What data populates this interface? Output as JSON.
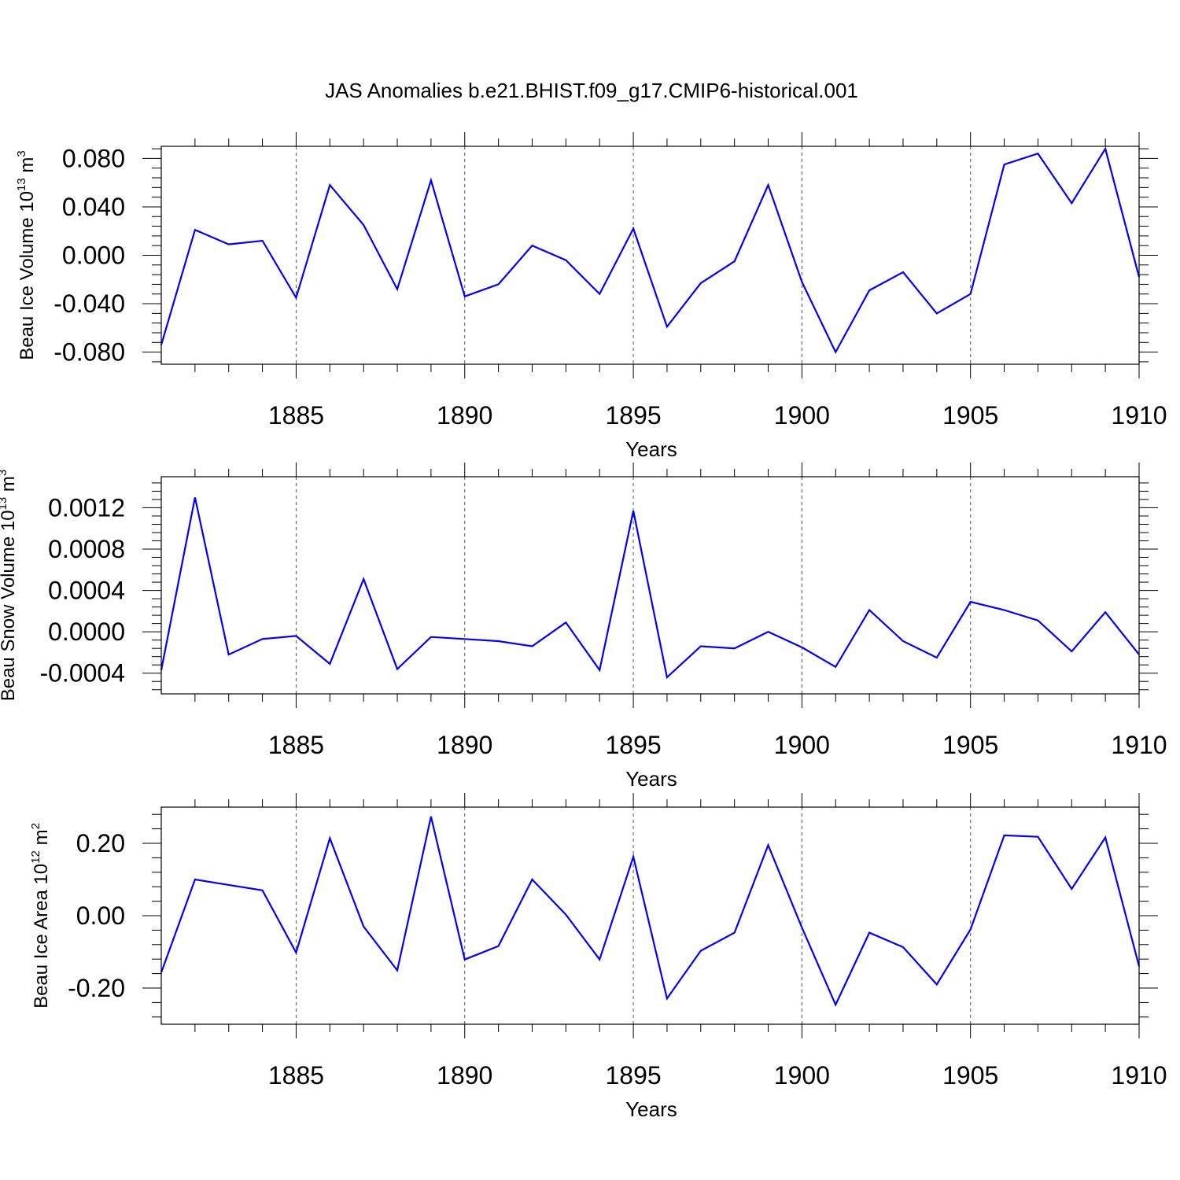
{
  "chart_data": [
    {
      "type": "line",
      "title": "JAS Anomalies b.e21.BHIST.f09_g17.CMIP6-historical.001",
      "xlabel": "Years",
      "ylabel": "Beau Ice Volume 10",
      "ylabel_exp": "13",
      "ylabel_unit": " m",
      "ylabel_unit_exp": "3",
      "xlim": [
        1881,
        1910
      ],
      "ylim": [
        -0.09,
        0.09
      ],
      "xticks": [
        "1885",
        "1890",
        "1895",
        "1900",
        "1905",
        "1910"
      ],
      "yticks": [
        {
          "value": 0.08,
          "label": "0.080"
        },
        {
          "value": 0.04,
          "label": "0.040"
        },
        {
          "value": 0.0,
          "label": "0.000"
        },
        {
          "value": -0.04,
          "label": "-0.040"
        },
        {
          "value": -0.08,
          "label": "-0.080"
        }
      ],
      "grid": "vertical dashed at 1885, 1890, 1895, 1900, 1905",
      "line_color": "#0000ff",
      "x": [
        1881,
        1882,
        1883,
        1884,
        1885,
        1886,
        1887,
        1888,
        1889,
        1890,
        1891,
        1892,
        1893,
        1894,
        1895,
        1896,
        1897,
        1898,
        1899,
        1900,
        1901,
        1902,
        1903,
        1904,
        1905,
        1906,
        1907,
        1908,
        1909,
        1910
      ],
      "values": [
        -0.074,
        0.021,
        0.009,
        0.012,
        -0.035,
        0.058,
        0.025,
        -0.028,
        0.062,
        -0.034,
        -0.024,
        0.008,
        -0.004,
        -0.032,
        0.022,
        -0.059,
        -0.023,
        -0.005,
        0.058,
        -0.022,
        -0.08,
        -0.029,
        -0.014,
        -0.048,
        -0.032,
        0.075,
        0.084,
        0.043,
        0.088,
        -0.018
      ]
    },
    {
      "type": "line",
      "title": "",
      "xlabel": "Years",
      "ylabel": "Beau Snow Volume 10",
      "ylabel_exp": "13",
      "ylabel_unit": " m",
      "ylabel_unit_exp": "3",
      "xlim": [
        1881,
        1910
      ],
      "ylim": [
        -0.0006,
        0.0015
      ],
      "xticks": [
        "1885",
        "1890",
        "1895",
        "1900",
        "1905",
        "1910"
      ],
      "yticks": [
        {
          "value": 0.0012,
          "label": "0.0012"
        },
        {
          "value": 0.0008,
          "label": "0.0008"
        },
        {
          "value": 0.0004,
          "label": "0.0004"
        },
        {
          "value": 0.0,
          "label": "0.0000"
        },
        {
          "value": -0.0004,
          "label": "-0.0004"
        }
      ],
      "grid": "vertical dashed at 1885, 1890, 1895, 1900, 1905",
      "line_color": "#0000ff",
      "x": [
        1881,
        1882,
        1883,
        1884,
        1885,
        1886,
        1887,
        1888,
        1889,
        1890,
        1891,
        1892,
        1893,
        1894,
        1895,
        1896,
        1897,
        1898,
        1899,
        1900,
        1901,
        1902,
        1903,
        1904,
        1905,
        1906,
        1907,
        1908,
        1909,
        1910
      ],
      "values": [
        -0.00037,
        0.0013,
        -0.00022,
        -7e-05,
        -4e-05,
        -0.00031,
        0.00051,
        -0.00036,
        -5e-05,
        -7e-05,
        -9e-05,
        -0.00014,
        9e-05,
        -0.00037,
        0.00117,
        -0.00044,
        -0.00014,
        -0.00016,
        0.0,
        -0.00015,
        -0.00034,
        0.00021,
        -9e-05,
        -0.00025,
        0.00029,
        0.00021,
        0.00011,
        -0.00019,
        0.00019,
        -0.00022
      ]
    },
    {
      "type": "line",
      "title": "",
      "xlabel": "Years",
      "ylabel": "Beau Ice Area 10",
      "ylabel_exp": "12",
      "ylabel_unit": " m",
      "ylabel_unit_exp": "2",
      "xlim": [
        1881,
        1910
      ],
      "ylim": [
        -0.3,
        0.3
      ],
      "xticks": [
        "1885",
        "1890",
        "1895",
        "1900",
        "1905",
        "1910"
      ],
      "yticks": [
        {
          "value": 0.2,
          "label": "0.20"
        },
        {
          "value": 0.0,
          "label": "0.00"
        },
        {
          "value": -0.2,
          "label": "-0.20"
        }
      ],
      "grid": "vertical dashed at 1885, 1890, 1895, 1900, 1905",
      "line_color": "#0000ff",
      "x": [
        1881,
        1882,
        1883,
        1884,
        1885,
        1886,
        1887,
        1888,
        1889,
        1890,
        1891,
        1892,
        1893,
        1894,
        1895,
        1896,
        1897,
        1898,
        1899,
        1900,
        1901,
        1902,
        1903,
        1904,
        1905,
        1906,
        1907,
        1908,
        1909,
        1910
      ],
      "values": [
        -0.157,
        0.1,
        0.085,
        0.07,
        -0.102,
        0.214,
        -0.03,
        -0.151,
        0.274,
        -0.121,
        -0.084,
        0.1,
        0.003,
        -0.121,
        0.163,
        -0.229,
        -0.097,
        -0.047,
        0.195,
        -0.033,
        -0.246,
        -0.047,
        -0.087,
        -0.19,
        -0.038,
        0.222,
        0.218,
        0.074,
        0.216,
        -0.14
      ]
    }
  ]
}
